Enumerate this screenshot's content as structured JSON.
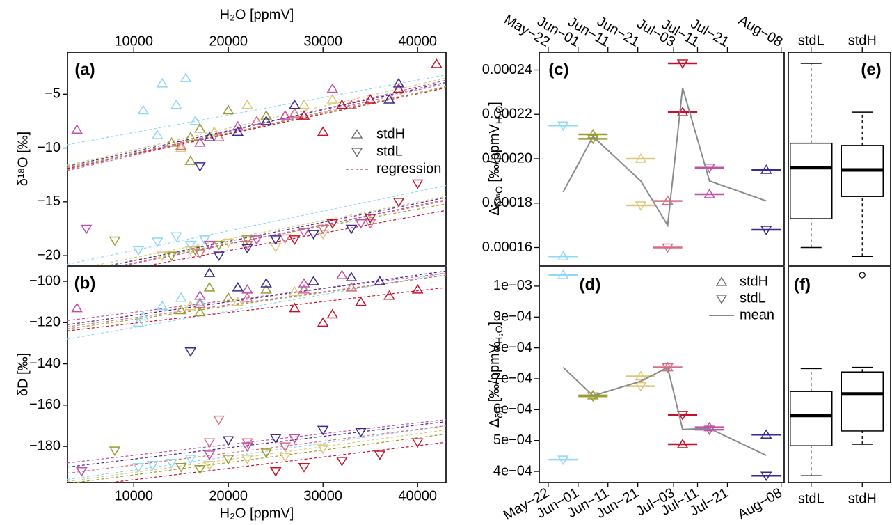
{
  "chart_data": [
    {
      "type": "scatter",
      "panel_label": "(a)",
      "x_label": "H₂O [ppmV]",
      "y_label": "δ¹⁸O [‰]",
      "xlim": [
        3000,
        43000
      ],
      "xticks": [
        10000,
        20000,
        30000,
        40000
      ],
      "ylim": [
        -20.9,
        -1.1
      ],
      "yticks": [
        {
          "value": -5,
          "label": "−5"
        },
        {
          "value": -10,
          "label": "−10"
        },
        {
          "value": -15,
          "label": "−15"
        },
        {
          "value": -20,
          "label": "−20"
        }
      ],
      "legend": [
        "stdH",
        "stdL",
        "regression"
      ],
      "legend_position": "right",
      "series": [
        {
          "marker": "up",
          "color": "#8fd8f6",
          "x": [
            11000,
            13000,
            14500,
            15500,
            16500,
            12500
          ],
          "values": [
            -6.5,
            -4,
            -6,
            -3.5,
            -7.5,
            -8.8
          ],
          "fit": [
            -9.7,
            -3.2
          ]
        },
        {
          "marker": "down",
          "color": "#8fd8f6",
          "x": [
            10500,
            12500,
            14500,
            16000,
            17500
          ],
          "values": [
            -19.5,
            -18.7,
            -18.2,
            -19,
            -18.5
          ],
          "fit": [
            -20.8,
            -13.5
          ]
        },
        {
          "marker": "up",
          "color": "#9c9c30",
          "x": [
            14000,
            16000,
            17000,
            20000,
            24000,
            16000
          ],
          "values": [
            -9.5,
            -9,
            -8.2,
            -6.5,
            -7,
            -11.2
          ],
          "fit": [
            -11.8,
            -4.3
          ]
        },
        {
          "marker": "down",
          "color": "#9c9c30",
          "x": [
            8000,
            14000,
            16500,
            19000,
            22000
          ],
          "values": [
            -18.6,
            -20,
            -19.5,
            -19,
            -18.5
          ],
          "fit": [
            -21.6,
            -15.2
          ]
        },
        {
          "marker": "up",
          "color": "#dcc878",
          "x": [
            15000,
            22000,
            28000,
            31000,
            18500
          ],
          "values": [
            -10,
            -6,
            -6,
            -5.5,
            -8.5
          ],
          "fit": [
            -11.6,
            -3.5
          ]
        },
        {
          "marker": "down",
          "color": "#dcc878",
          "x": [
            16000,
            20000,
            25000,
            30000,
            13000
          ],
          "values": [
            -19.5,
            -18.8,
            -19.2,
            -18,
            -20
          ],
          "fit": [
            -21.4,
            -14.5
          ]
        },
        {
          "marker": "up",
          "color": "#d86c84",
          "x": [
            15000,
            19000,
            23000,
            27000,
            33000
          ],
          "values": [
            -9.8,
            -9,
            -7.5,
            -6.8,
            -6
          ],
          "fit": [
            -12.1,
            -4
          ]
        },
        {
          "marker": "down",
          "color": "#d86c84",
          "x": [
            17000,
            22000,
            26000,
            30000,
            35000
          ],
          "values": [
            -19.8,
            -19,
            -18.4,
            -17.5,
            -17
          ],
          "fit": [
            -21.9,
            -14.9
          ]
        },
        {
          "marker": "up",
          "color": "#c4122e",
          "x": [
            28000,
            32000,
            35000,
            38000,
            42000,
            30000
          ],
          "values": [
            -7,
            -6,
            -5.5,
            -4.5,
            -2.2,
            -8.5
          ],
          "fit": [
            -11.9,
            -4.4
          ]
        },
        {
          "marker": "down",
          "color": "#c4122e",
          "x": [
            27000,
            31000,
            35000,
            38000,
            40000
          ],
          "values": [
            -18.5,
            -17,
            -16.5,
            -15,
            -13.3
          ],
          "fit": [
            -22.3,
            -15.8
          ]
        },
        {
          "marker": "up",
          "color": "#c050a8",
          "x": [
            4000,
            17000,
            21000,
            26000,
            31000
          ],
          "values": [
            -8.3,
            -9.5,
            -8,
            -7,
            -4.5
          ],
          "fit": [
            -12,
            -3.7
          ]
        },
        {
          "marker": "down",
          "color": "#c050a8",
          "x": [
            5000,
            18000,
            23000,
            28000,
            34000
          ],
          "values": [
            -17.5,
            -19,
            -18.5,
            -17.8,
            -17
          ],
          "fit": [
            -22,
            -14.8
          ]
        },
        {
          "marker": "up",
          "color": "#3a2a8e",
          "x": [
            18000,
            21000,
            24000,
            27000,
            37000,
            38000
          ],
          "values": [
            -9,
            -8.5,
            -7.5,
            -6,
            -5.5,
            -4
          ],
          "fit": [
            -11.7,
            -3.9
          ]
        },
        {
          "marker": "down",
          "color": "#3a2a8e",
          "x": [
            17000,
            19000,
            22000,
            25000,
            29000,
            33000
          ],
          "values": [
            -11.7,
            -20,
            -19.3,
            -18.5,
            -18,
            -17.5
          ],
          "fit": [
            -21.7,
            -14.6
          ]
        }
      ]
    },
    {
      "type": "scatter",
      "panel_label": "(b)",
      "x_label": "H₂O [ppmV]",
      "y_label": "δD [‰]",
      "xlim": [
        3000,
        43000
      ],
      "xticks": [
        10000,
        20000,
        30000,
        40000
      ],
      "ylim": [
        -197.5,
        -92.9
      ],
      "yticks": [
        {
          "value": -100,
          "label": "−100"
        },
        {
          "value": -120,
          "label": "−120"
        },
        {
          "value": -140,
          "label": "−140"
        },
        {
          "value": -160,
          "label": "−160"
        },
        {
          "value": -180,
          "label": "−180"
        }
      ],
      "series": [
        {
          "marker": "up",
          "color": "#8fd8f6",
          "x": [
            10500,
            11000,
            13000,
            15000,
            17000
          ],
          "values": [
            -120,
            -117,
            -112,
            -108,
            -110
          ],
          "fit": [
            -128,
            -96
          ]
        },
        {
          "marker": "down",
          "color": "#8fd8f6",
          "x": [
            10500,
            12000,
            14000,
            16000
          ],
          "values": [
            -190,
            -189,
            -188,
            -186
          ],
          "fit": [
            -196,
            -170
          ]
        },
        {
          "marker": "up",
          "color": "#9c9c30",
          "x": [
            15000,
            17000,
            20000,
            24000,
            18000
          ],
          "values": [
            -114,
            -115,
            -108,
            -104,
            -103
          ],
          "fit": [
            -123,
            -97
          ]
        },
        {
          "marker": "down",
          "color": "#9c9c30",
          "x": [
            8000,
            15000,
            17000,
            20000,
            24000
          ],
          "values": [
            -182,
            -190,
            -191,
            -186,
            -183
          ],
          "fit": [
            -198,
            -174
          ]
        },
        {
          "marker": "up",
          "color": "#dcc878",
          "x": [
            16000,
            21000,
            27000,
            33000
          ],
          "values": [
            -112,
            -110,
            -105,
            -103
          ],
          "fit": [
            -121,
            -95
          ]
        },
        {
          "marker": "down",
          "color": "#dcc878",
          "x": [
            18000,
            22000,
            26000,
            30000
          ],
          "values": [
            -189,
            -186,
            -185,
            -181
          ],
          "fit": [
            -197,
            -172
          ]
        },
        {
          "marker": "up",
          "color": "#d86c84",
          "x": [
            17000,
            22000,
            28000,
            33000
          ],
          "values": [
            -111,
            -108,
            -104,
            -103
          ],
          "fit": [
            -122,
            -97
          ]
        },
        {
          "marker": "down",
          "color": "#d86c84",
          "x": [
            18000,
            22000,
            26000,
            19000
          ],
          "values": [
            -178,
            -178,
            -180,
            -167
          ],
          "fit": [
            -193,
            -170
          ]
        },
        {
          "marker": "up",
          "color": "#c4122e",
          "x": [
            27000,
            31000,
            34000,
            37000,
            40000,
            30000
          ],
          "values": [
            -113,
            -116,
            -110,
            -107,
            -104,
            -120
          ],
          "fit": [
            -124,
            -103
          ]
        },
        {
          "marker": "down",
          "color": "#c4122e",
          "x": [
            25000,
            28000,
            32000,
            36000,
            40000
          ],
          "values": [
            -192,
            -190,
            -187,
            -184,
            -178
          ],
          "fit": [
            -200,
            -178
          ]
        },
        {
          "marker": "up",
          "color": "#c050a8",
          "x": [
            4000,
            17000,
            22000,
            28000,
            32000
          ],
          "values": [
            -113,
            -107,
            -104,
            -101,
            -97
          ],
          "fit": [
            -119,
            -96
          ]
        },
        {
          "marker": "down",
          "color": "#c050a8",
          "x": [
            4500,
            18000,
            22000,
            27000
          ],
          "values": [
            -192,
            -184,
            -180,
            -176
          ],
          "fit": [
            -188,
            -167
          ]
        },
        {
          "marker": "up",
          "color": "#3a2a8e",
          "x": [
            18000,
            21000,
            24000,
            29000,
            33000,
            36000
          ],
          "values": [
            -96,
            -103,
            -101,
            -100,
            -98,
            -100
          ],
          "fit": [
            -121,
            -95
          ]
        },
        {
          "marker": "down",
          "color": "#3a2a8e",
          "x": [
            16000,
            20000,
            25000,
            30000,
            34000
          ],
          "values": [
            -134,
            -177,
            -176,
            -172,
            -173
          ],
          "fit": [
            -190,
            -168
          ]
        }
      ]
    },
    {
      "type": "line",
      "panel_label": "(c)",
      "y_label": [
        "Δ",
        "δ¹⁸O",
        " [‰/ppmV",
        "H₂O",
        "]"
      ],
      "xlim": [
        139,
        221
      ],
      "xticks": [
        {
          "value": 142,
          "label": "May−22"
        },
        {
          "value": 152,
          "label": "Jun−01"
        },
        {
          "value": 162,
          "label": "Jun−11"
        },
        {
          "value": 172,
          "label": "Jun−21"
        },
        {
          "value": 184,
          "label": "Jul−03"
        },
        {
          "value": 192,
          "label": "Jul−11"
        },
        {
          "value": 202,
          "label": "Jul−21"
        },
        {
          "value": 220,
          "label": "Aug−08"
        }
      ],
      "ylim": [
        0.000152,
        0.000248
      ],
      "yticks": [
        0.00016,
        0.00018,
        {
          "value": 0.0002,
          "label": "0.00020"
        },
        0.00022,
        0.00024
      ],
      "x": [
        147,
        157,
        173,
        182,
        187,
        196,
        215
      ],
      "colors": [
        "#8fd8f6",
        "#9c9c30",
        "#dcc878",
        "#d86c84",
        "#c4122e",
        "#c050a8",
        "#3a2a8e"
      ],
      "series": [
        {
          "marker": "up",
          "values": [
            0.000156,
            0.000211,
            0.0002,
            0.000181,
            0.000221,
            0.000184,
            0.000195
          ]
        },
        {
          "marker": "down",
          "values": [
            0.000215,
            0.000209,
            0.000179,
            0.00016,
            0.000243,
            0.000196,
            0.000168
          ]
        },
        {
          "color": "#8a8a8a",
          "values": [
            0.000185,
            0.00021,
            0.00019,
            0.00017,
            0.000232,
            0.00019,
            0.000181
          ]
        }
      ]
    },
    {
      "type": "line",
      "panel_label": "(d)",
      "y_label": [
        "Δ",
        "δD",
        " [‰/ppmV",
        "H₂O",
        "]"
      ],
      "xlim": [
        139,
        221
      ],
      "xticks": [
        {
          "value": 142,
          "label": "May−22"
        },
        {
          "value": 152,
          "label": "Jun−01"
        },
        {
          "value": 162,
          "label": "Jun−11"
        },
        {
          "value": 172,
          "label": "Jun−21"
        },
        {
          "value": 184,
          "label": "Jul−03"
        },
        {
          "value": 192,
          "label": "Jul−11"
        },
        {
          "value": 202,
          "label": "Jul−21"
        },
        {
          "value": 220,
          "label": "Aug−08"
        }
      ],
      "ylim": [
        0.000364,
        0.001063
      ],
      "yticks": [
        {
          "value": 0.0004,
          "label": "4e−04"
        },
        {
          "value": 0.0005,
          "label": "5e−04"
        },
        {
          "value": 0.0006,
          "label": "6e−04"
        },
        {
          "value": 0.0007,
          "label": "7e−04"
        },
        {
          "value": 0.0008,
          "label": "8e−04"
        },
        {
          "value": 0.0009,
          "label": "9e−04"
        },
        {
          "value": 0.001,
          "label": "1e−03"
        }
      ],
      "x": [
        147,
        157,
        173,
        182,
        187,
        196,
        215
      ],
      "colors": [
        "#8fd8f6",
        "#9c9c30",
        "#dcc878",
        "#d86c84",
        "#c4122e",
        "#c050a8",
        "#3a2a8e"
      ],
      "legend_position": "top-right",
      "series": [
        {
          "name": "stdH",
          "marker": "up",
          "values": [
            0.001036,
            0.000646,
            0.000708,
            0.000737,
            0.000488,
            0.000543,
            0.000519
          ]
        },
        {
          "name": "stdL",
          "marker": "down",
          "values": [
            0.000438,
            0.000643,
            0.000676,
            0.000737,
            0.000583,
            0.000535,
            0.000386
          ]
        },
        {
          "name": "mean",
          "color": "#8a8a8a",
          "values": [
            0.000737,
            0.000645,
            0.000692,
            0.000737,
            0.000536,
            0.000539,
            0.000452
          ]
        }
      ]
    },
    {
      "type": "box",
      "panel_label": "(e)",
      "categories": [
        "stdL",
        "stdH"
      ],
      "category_axis": "top",
      "ylim": [
        0.000152,
        0.000248
      ],
      "boxes": [
        {
          "low": 0.00016,
          "q1": 0.000173,
          "median": 0.000196,
          "q3": 0.000207,
          "high": 0.000243
        },
        {
          "low": 0.000156,
          "q1": 0.000183,
          "median": 0.000195,
          "q3": 0.000206,
          "high": 0.000221
        }
      ]
    },
    {
      "type": "box",
      "panel_label": "(f)",
      "categories": [
        "stdL",
        "stdH"
      ],
      "category_axis": "bottom",
      "ylim": [
        0.000364,
        0.001063
      ],
      "boxes": [
        {
          "low": 0.000386,
          "q1": 0.000483,
          "median": 0.000581,
          "q3": 0.000659,
          "high": 0.000733
        },
        {
          "low": 0.000488,
          "q1": 0.000531,
          "median": 0.000651,
          "q3": 0.000722,
          "high": 0.000737,
          "outliers": [
            0.001036
          ]
        }
      ]
    }
  ]
}
